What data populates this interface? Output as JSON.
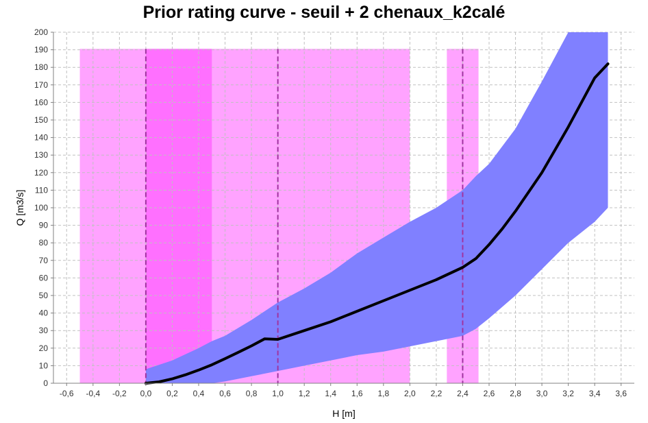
{
  "chart_data": {
    "type": "area",
    "title": "Prior rating curve - seuil + 2 chenaux_k2calé",
    "xlabel": "H [m]",
    "ylabel": "Q [m3/s]",
    "xlim": [
      -0.7,
      3.7
    ],
    "ylim": [
      0,
      200
    ],
    "xticks": [
      -0.6,
      -0.4,
      -0.2,
      0.0,
      0.2,
      0.4,
      0.6,
      0.8,
      1.0,
      1.2,
      1.4,
      1.6,
      1.8,
      2.0,
      2.2,
      2.4,
      2.6,
      2.8,
      3.0,
      3.2,
      3.4,
      3.6
    ],
    "xtick_labels": [
      "-0,6",
      "-0,4",
      "-0,2",
      "0,0",
      "0,2",
      "0,4",
      "0,6",
      "0,8",
      "1,0",
      "1,2",
      "1,4",
      "1,6",
      "1,8",
      "2,0",
      "2,2",
      "2,4",
      "2,6",
      "2,8",
      "3,0",
      "3,2",
      "3,4",
      "3,6"
    ],
    "yticks": [
      0,
      10,
      20,
      30,
      40,
      50,
      60,
      70,
      80,
      90,
      100,
      110,
      120,
      130,
      140,
      150,
      160,
      170,
      180,
      190,
      200
    ],
    "ytick_labels": [
      "0",
      "10",
      "20",
      "30",
      "40",
      "50",
      "60",
      "70",
      "80",
      "90",
      "100",
      "110",
      "120",
      "130",
      "140",
      "150",
      "160",
      "170",
      "180",
      "190",
      "200"
    ],
    "grid": true,
    "colors": {
      "band": "#8080ff",
      "curve": "#000000",
      "activation_light": "#ffa3ff",
      "activation_dark": "#ff70ff",
      "activation_line": "#a033a0",
      "grid": "#c0c0c0"
    },
    "activation_bands": [
      {
        "x_min": -0.5,
        "x_max": 2.0,
        "y_max": 190.5,
        "shade": "light"
      },
      {
        "x_min": 0.0,
        "x_max": 0.5,
        "y_max": 190.5,
        "shade": "dark"
      },
      {
        "x_min": 2.28,
        "x_max": 2.52,
        "y_max": 190.5,
        "shade": "light"
      }
    ],
    "activation_lines": [
      0.0,
      1.0,
      2.4
    ],
    "uncertainty_band": {
      "x": [
        0.0,
        0.2,
        0.4,
        0.5,
        0.6,
        0.8,
        1.0,
        1.2,
        1.4,
        1.6,
        1.8,
        2.0,
        2.2,
        2.4,
        2.5,
        2.6,
        2.8,
        3.0,
        3.2,
        3.4,
        3.5
      ],
      "upper": [
        8,
        13,
        20,
        24,
        27,
        36,
        46,
        54,
        63,
        74,
        83,
        92,
        100,
        110,
        118,
        125,
        145,
        172,
        200,
        200,
        200
      ],
      "lower": [
        0,
        0,
        0,
        0,
        1,
        4,
        7,
        10,
        13,
        16,
        18,
        21,
        24,
        27,
        31,
        37,
        50,
        65,
        80,
        92,
        100
      ]
    },
    "curve": {
      "x": [
        0.0,
        0.1,
        0.2,
        0.3,
        0.4,
        0.5,
        0.6,
        0.7,
        0.8,
        0.9,
        1.0,
        1.2,
        1.4,
        1.6,
        1.8,
        2.0,
        2.2,
        2.4,
        2.5,
        2.6,
        2.7,
        2.8,
        2.9,
        3.0,
        3.1,
        3.2,
        3.3,
        3.4,
        3.5
      ],
      "y": [
        0,
        0.8,
        2.5,
        4.8,
        7.5,
        10.5,
        14,
        17.6,
        21.3,
        25.3,
        25,
        30,
        35,
        41,
        47,
        53,
        59,
        66,
        71,
        79,
        88,
        98,
        109,
        120,
        133,
        146,
        160,
        174,
        182
      ]
    }
  }
}
